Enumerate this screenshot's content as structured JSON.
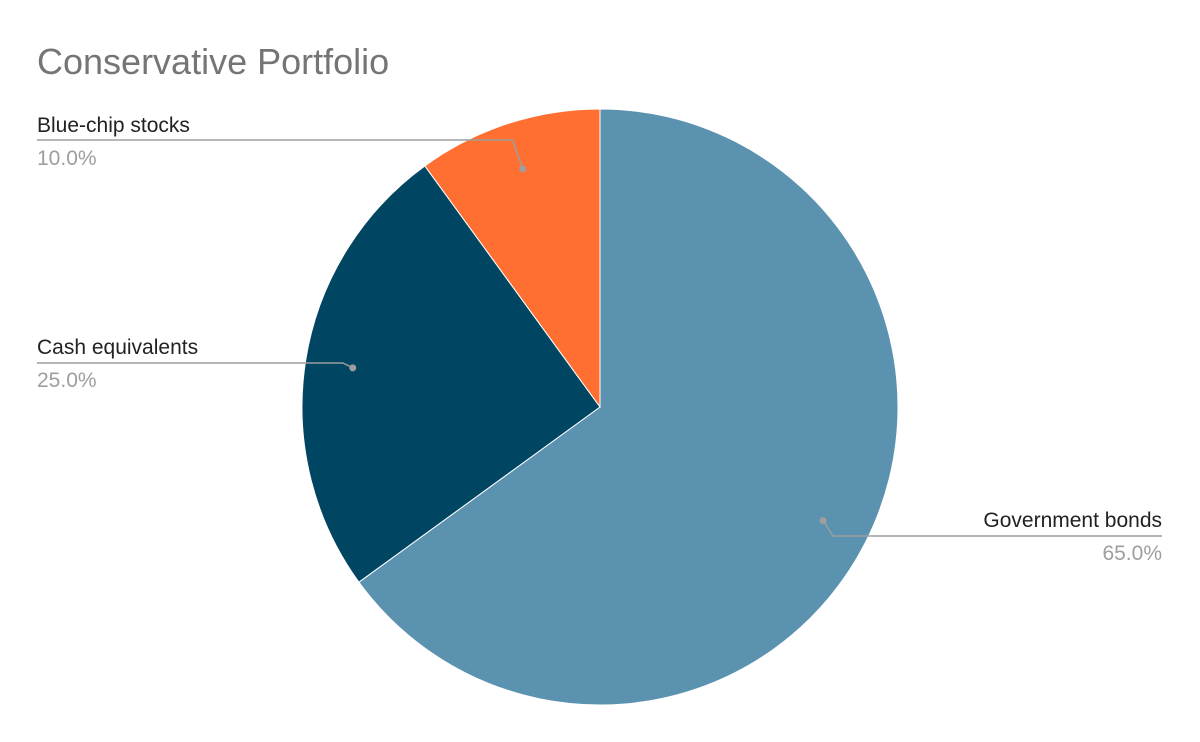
{
  "chart_data": {
    "type": "pie",
    "title": "Conservative Portfolio",
    "slices": [
      {
        "label": "Government bonds",
        "value": 65.0,
        "value_label": "65.0%",
        "color": "#5a92b0"
      },
      {
        "label": "Cash equivalents",
        "value": 25.0,
        "value_label": "25.0%",
        "color": "#004561"
      },
      {
        "label": "Blue-chip stocks",
        "value": 10.0,
        "value_label": "10.0%",
        "color": "#ff6f31"
      }
    ],
    "start_angle": "12 o'clock",
    "direction": "clockwise",
    "legend": "none",
    "data_labels": "outside with leader lines"
  },
  "colors": {
    "title": "#757575",
    "label": "#222222",
    "value_label": "#9e9e9e",
    "leader_line": "#9e9e9e",
    "background": "#ffffff"
  }
}
